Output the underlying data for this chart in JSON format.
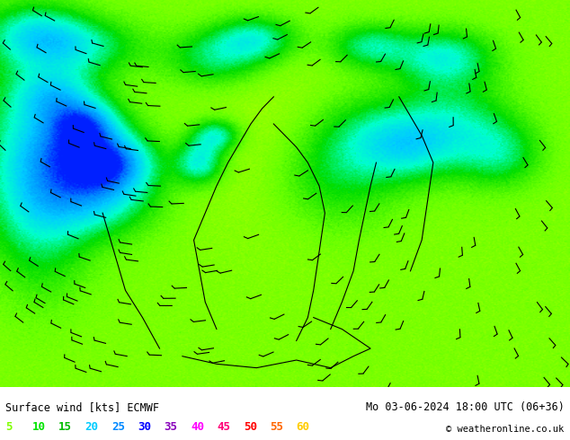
{
  "title_left": "Surface wind [kts] ECMWF",
  "title_right": "Mo 03-06-2024 18:00 UTC (06+36)",
  "copyright": "© weatheronline.co.uk",
  "legend_values": [
    "5",
    "10",
    "15",
    "20",
    "25",
    "30",
    "35",
    "40",
    "45",
    "50",
    "55",
    "60"
  ],
  "legend_colors": [
    "#80ff00",
    "#00e400",
    "#00bb00",
    "#00ccff",
    "#0088ff",
    "#0000ff",
    "#8800bb",
    "#ff00ff",
    "#ff0077",
    "#ff0000",
    "#ff6600",
    "#ffcc00"
  ],
  "background_color": "#ffffff",
  "font_family": "monospace",
  "figsize": [
    6.34,
    4.9
  ],
  "dpi": 100,
  "wind_colors": [
    [
      0.0,
      "#ffff00"
    ],
    [
      0.08,
      "#ddff00"
    ],
    [
      0.15,
      "#aaff00"
    ],
    [
      0.22,
      "#66ff00"
    ],
    [
      0.3,
      "#00dd00"
    ],
    [
      0.38,
      "#00ffcc"
    ],
    [
      0.46,
      "#00ccff"
    ],
    [
      0.54,
      "#0088ff"
    ],
    [
      0.62,
      "#0000ff"
    ],
    [
      0.7,
      "#8800bb"
    ],
    [
      0.78,
      "#ff00ff"
    ],
    [
      0.86,
      "#ff0077"
    ],
    [
      0.93,
      "#ff0000"
    ],
    [
      1.0,
      "#ff6600"
    ]
  ]
}
